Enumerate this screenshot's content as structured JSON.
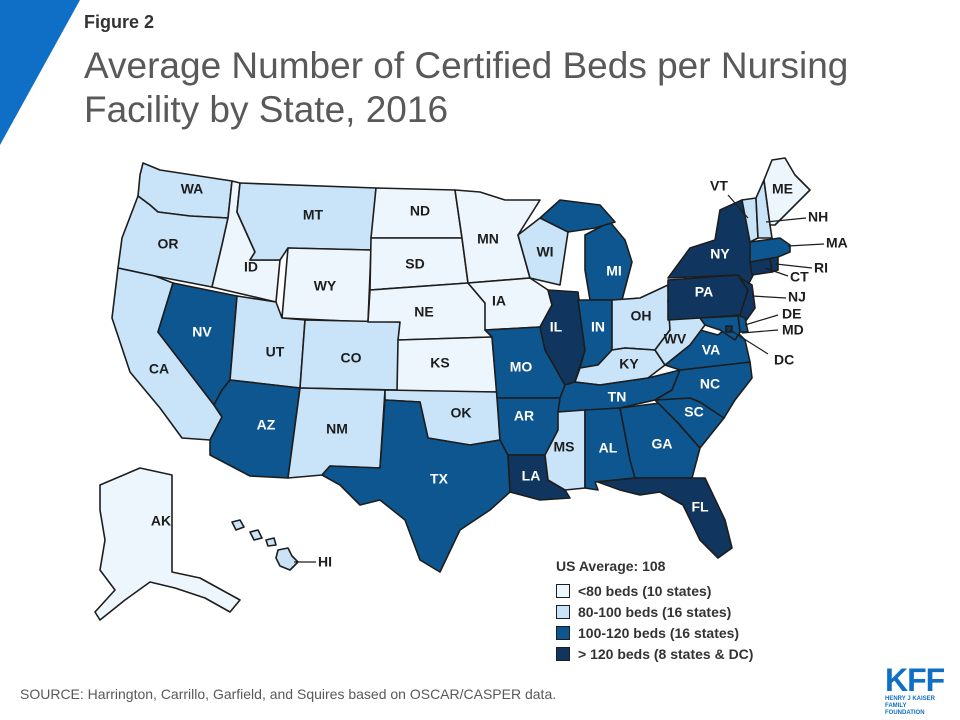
{
  "figure_label": "Figure 2",
  "title": "Average Number of Certified Beds per Nursing Facility by State, 2016",
  "colors": {
    "lt80": "#eef6fd",
    "b80_100": "#c9e4f8",
    "b100_120": "#0e5690",
    "gt120": "#10365f",
    "accent": "#0f6fc6"
  },
  "legend": {
    "title": "US Average: 108",
    "items": [
      {
        "key": "lt80",
        "label": "<80 beds (10 states)"
      },
      {
        "key": "b80_100",
        "label": "80-100 beds (16 states)"
      },
      {
        "key": "b100_120",
        "label": "100-120 beds (16 states)"
      },
      {
        "key": "gt120",
        "label": "> 120 beds (8 states & DC)"
      }
    ]
  },
  "states": {
    "WA": "b80_100",
    "OR": "b80_100",
    "CA": "b80_100",
    "ID": "lt80",
    "NV": "b100_120",
    "MT": "b80_100",
    "WY": "lt80",
    "UT": "b80_100",
    "AZ": "b100_120",
    "CO": "b80_100",
    "NM": "b80_100",
    "ND": "lt80",
    "SD": "lt80",
    "NE": "lt80",
    "KS": "lt80",
    "OK": "b80_100",
    "TX": "b100_120",
    "MN": "lt80",
    "IA": "lt80",
    "MO": "b100_120",
    "AR": "b100_120",
    "LA": "gt120",
    "WI": "b80_100",
    "IL": "gt120",
    "MI": "b100_120",
    "IN": "b100_120",
    "OH": "b80_100",
    "KY": "b80_100",
    "TN": "b100_120",
    "MS": "b80_100",
    "AL": "b100_120",
    "GA": "b100_120",
    "FL": "gt120",
    "SC": "b100_120",
    "NC": "b100_120",
    "VA": "b100_120",
    "WV": "b80_100",
    "PA": "gt120",
    "NY": "gt120",
    "VT": "b80_100",
    "NH": "b80_100",
    "ME": "lt80",
    "MA": "b100_120",
    "RI": "gt120",
    "CT": "gt120",
    "NJ": "gt120",
    "DE": "b100_120",
    "MD": "b100_120",
    "DC": "gt120",
    "AK": "lt80",
    "HI": "b80_100"
  },
  "source": "SOURCE: Harrington,  Carrillo, Garfield, and Squires based on OSCAR/CASPER data.",
  "logo": {
    "text": "KFF",
    "line1": "HENRY J KAISER",
    "line2": "FAMILY FOUNDATION"
  }
}
